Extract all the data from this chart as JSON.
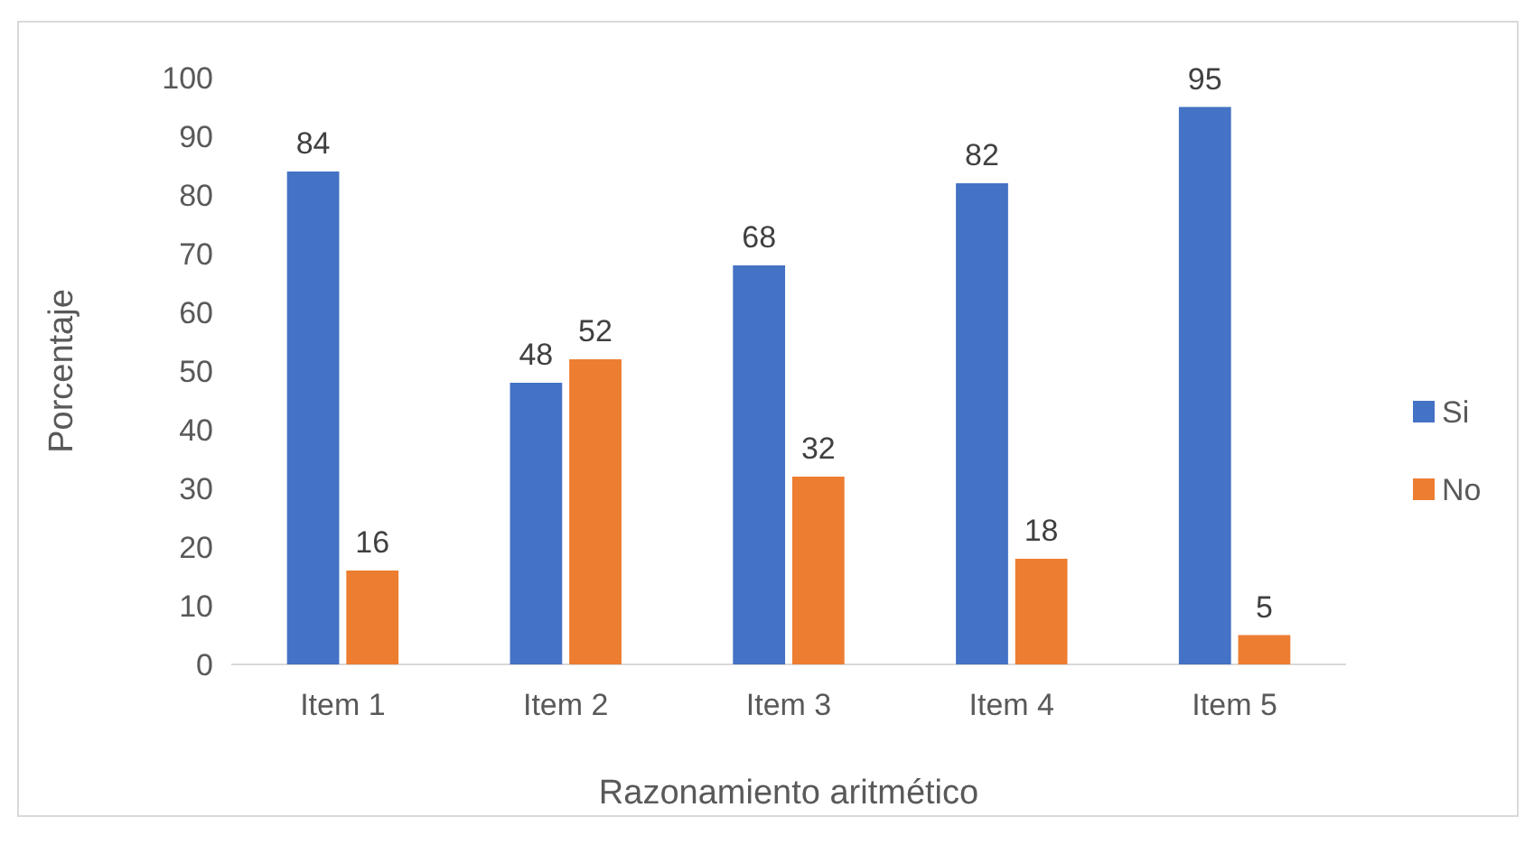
{
  "chart_data": {
    "type": "bar",
    "xlabel": "Razonamiento aritmético",
    "ylabel": "Porcentaje",
    "categories": [
      "Item 1",
      "Item 2",
      "Item 3",
      "Item 4",
      "Item 5"
    ],
    "series": [
      {
        "name": "Si",
        "color": "#4472c4",
        "values": [
          84,
          48,
          68,
          82,
          95
        ]
      },
      {
        "name": "No",
        "color": "#ed7d31",
        "values": [
          16,
          52,
          32,
          18,
          5
        ]
      }
    ],
    "ylim": [
      0,
      100
    ],
    "yticks": [
      0,
      10,
      20,
      30,
      40,
      50,
      60,
      70,
      80,
      90,
      100
    ],
    "data_labels": true,
    "legend": "right",
    "grid": false
  }
}
